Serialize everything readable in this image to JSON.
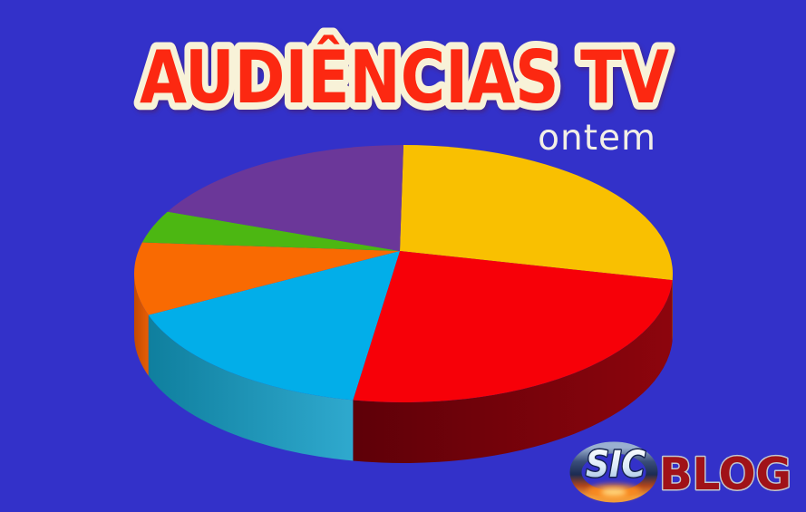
{
  "title": "AUDIÊNCIAS TV",
  "subtitle": "ontem",
  "logo": {
    "sic": "SIC",
    "blog": "BLOG"
  },
  "colors": {
    "background": "#3331C9",
    "title_fill": "#FC2811",
    "title_outline": "#F8F2D8",
    "subtitle_text": "#F2EFE6",
    "blog_fill": "#A01218",
    "blog_outline": "#C3C8CF"
  },
  "chart_data": {
    "type": "pie",
    "three_d": true,
    "title": "AUDIÊNCIAS TV",
    "subtitle": "ontem",
    "labels_shown": false,
    "legend": "none",
    "start_angle_deg": 0,
    "direction": "clockwise",
    "slices": [
      {
        "color_name": "yellow",
        "hex": "#F9C001",
        "side_gradient": [
          "#B08A00",
          "#B08A00"
        ],
        "percent": 25.8
      },
      {
        "color_name": "red",
        "hex": "#F70008",
        "side_gradient": [
          "#8D050D",
          "#5E0008"
        ],
        "percent": 27.2
      },
      {
        "color_name": "cyan",
        "hex": "#02AEE9",
        "side_gradient": [
          "#2FA9CE",
          "#0F7F9E"
        ],
        "percent": 16.8
      },
      {
        "color_name": "orange",
        "hex": "#F96A02",
        "side_gradient": [
          "#E65E05",
          "#C24A02"
        ],
        "percent": 9.1
      },
      {
        "color_name": "green",
        "hex": "#4CB712",
        "side_gradient": [
          "#3E9210",
          "#3E9210"
        ],
        "percent": 4.1
      },
      {
        "color_name": "purple",
        "hex": "#6B3799",
        "side_gradient": [
          "#552C7A",
          "#552C7A"
        ],
        "percent": 17.0
      }
    ]
  }
}
